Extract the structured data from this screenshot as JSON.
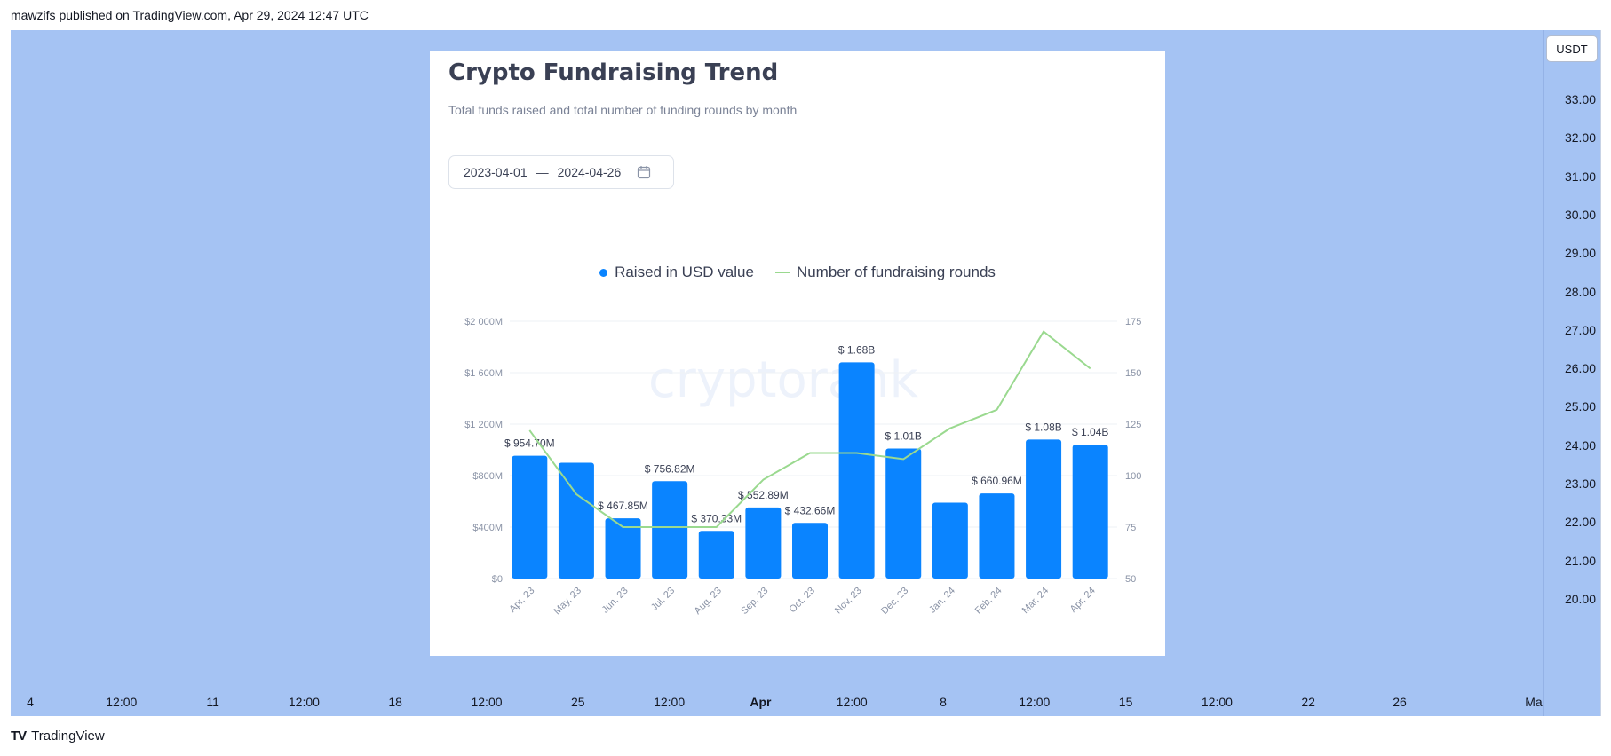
{
  "header": {
    "published_text": "mawzifs published on TradingView.com, Apr 29, 2024 12:47 UTC"
  },
  "footer": {
    "brand_logo": "TV",
    "brand_name": "TradingView"
  },
  "price_scale": {
    "currency": "USDT",
    "labels": [
      "33.00",
      "32.00",
      "31.00",
      "30.00",
      "29.00",
      "28.00",
      "27.00",
      "26.00",
      "25.00",
      "24.00",
      "23.00",
      "22.00",
      "21.00",
      "20.00"
    ]
  },
  "time_scale": {
    "labels": [
      {
        "text": "4",
        "bold": false
      },
      {
        "text": "12:00",
        "bold": false
      },
      {
        "text": "11",
        "bold": false
      },
      {
        "text": "12:00",
        "bold": false
      },
      {
        "text": "18",
        "bold": false
      },
      {
        "text": "12:00",
        "bold": false
      },
      {
        "text": "25",
        "bold": false
      },
      {
        "text": "12:00",
        "bold": false
      },
      {
        "text": "Apr",
        "bold": true
      },
      {
        "text": "12:00",
        "bold": false
      },
      {
        "text": "8",
        "bold": false
      },
      {
        "text": "12:00",
        "bold": false
      },
      {
        "text": "15",
        "bold": false
      },
      {
        "text": "12:00",
        "bold": false
      },
      {
        "text": "22",
        "bold": false
      },
      {
        "text": "26",
        "bold": false
      },
      {
        "text": "Ma",
        "bold": false
      }
    ]
  },
  "card": {
    "title": "Crypto Fundraising Trend",
    "subtitle": "Total funds raised and total number of funding rounds by month",
    "date_from": "2023-04-01",
    "date_separator": "—",
    "date_to": "2024-04-26",
    "calendar_icon": "calendar-icon",
    "watermark": "cryptorank"
  },
  "colors": {
    "bar": "#0a84ff",
    "line": "#9ad98f",
    "grid": "#eef1f5",
    "axis_text": "#8a93a6"
  },
  "chart_data": {
    "type": "bar",
    "categories": [
      "Apr, 23",
      "May, 23",
      "Jun, 23",
      "Jul, 23",
      "Aug, 23",
      "Sep, 23",
      "Oct, 23",
      "Nov, 23",
      "Dec, 23",
      "Jan, 24",
      "Feb, 24",
      "Mar, 24",
      "Apr, 24"
    ],
    "series": [
      {
        "name": "Raised in USD value",
        "axis": "left",
        "type": "bar",
        "values": [
          954.7,
          900,
          467.85,
          756.82,
          370.33,
          552.89,
          432.66,
          1680,
          1010,
          590,
          660.96,
          1080,
          1040
        ],
        "labels": [
          "$ 954.70M",
          "",
          "$ 467.85M",
          "$ 756.82M",
          "$ 370.33M",
          "$ 552.89M",
          "$ 432.66M",
          "$ 1.68B",
          "$ 1.01B",
          "",
          "$ 660.96M",
          "$ 1.08B",
          "$ 1.04B"
        ]
      },
      {
        "name": "Number of fundraising rounds",
        "axis": "right",
        "type": "line",
        "values": [
          122,
          91,
          75,
          75,
          75,
          98,
          111,
          111,
          108,
          123,
          132,
          170,
          152
        ]
      }
    ],
    "y_left": {
      "range": [
        0,
        2000
      ],
      "ticks": [
        0,
        400,
        800,
        1200,
        1600,
        2000
      ],
      "tick_labels": [
        "$0",
        "$400M",
        "$800M",
        "$1 200M",
        "$1 600M",
        "$2 000M"
      ]
    },
    "y_right": {
      "range": [
        50,
        175
      ],
      "ticks": [
        50,
        75,
        100,
        125,
        150,
        175
      ],
      "tick_labels": [
        "50",
        "75",
        "100",
        "125",
        "150",
        "175"
      ]
    },
    "legend_position": "top-center",
    "grid": true
  }
}
